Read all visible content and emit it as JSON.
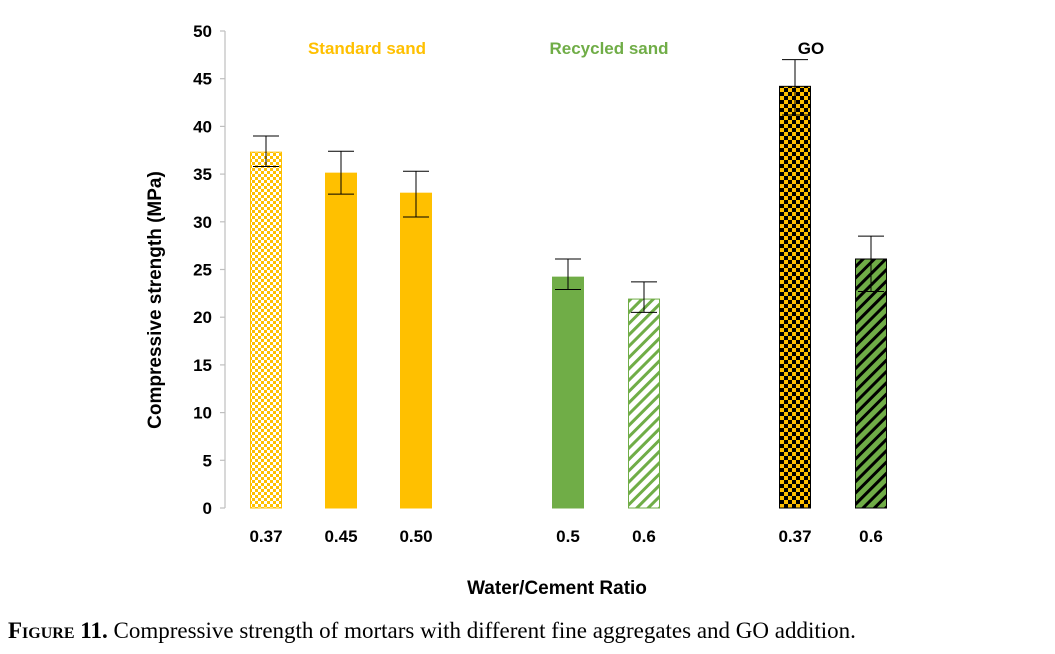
{
  "chart_data": {
    "type": "bar",
    "xlabel": "Water/Cement Ratio",
    "ylabel": "Compressive strength (MPa)",
    "ylim": [
      0,
      50
    ],
    "yticks": [
      0,
      5,
      10,
      15,
      20,
      25,
      30,
      35,
      40,
      45,
      50
    ],
    "grid": false,
    "groups": [
      {
        "name": "Standard sand",
        "color": "#FFC000",
        "bars": [
          {
            "category": "0.37",
            "value": 37.3,
            "error_upper": 39.0,
            "error_lower": 35.8,
            "pattern": "checker"
          },
          {
            "category": "0.45",
            "value": 35.1,
            "error_upper": 37.4,
            "error_lower": 32.9,
            "pattern": "solid"
          },
          {
            "category": "0.50",
            "value": 33.0,
            "error_upper": 35.3,
            "error_lower": 30.5,
            "pattern": "solid"
          }
        ]
      },
      {
        "name": "Recycled sand",
        "color": "#70AD47",
        "bars": [
          {
            "category": "0.5",
            "value": 24.2,
            "error_upper": 26.1,
            "error_lower": 22.9,
            "pattern": "solid"
          },
          {
            "category": "0.6",
            "value": 21.9,
            "error_upper": 23.7,
            "error_lower": 20.5,
            "pattern": "diagonal-light"
          }
        ]
      },
      {
        "name": "GO",
        "color": "#000000",
        "bars": [
          {
            "category": "0.37",
            "value": 44.2,
            "error_upper": 47.0,
            "error_lower": 41.2,
            "pattern": "checker-dark",
            "pattern_color": "#FFC000"
          },
          {
            "category": "0.6",
            "value": 26.1,
            "error_upper": 28.5,
            "error_lower": 22.7,
            "pattern": "diagonal-dark",
            "pattern_color": "#70AD47"
          }
        ]
      }
    ]
  },
  "caption": {
    "label": "Figure 11.",
    "text": " Compressive strength of mortars with different fine aggregates and GO addition."
  }
}
